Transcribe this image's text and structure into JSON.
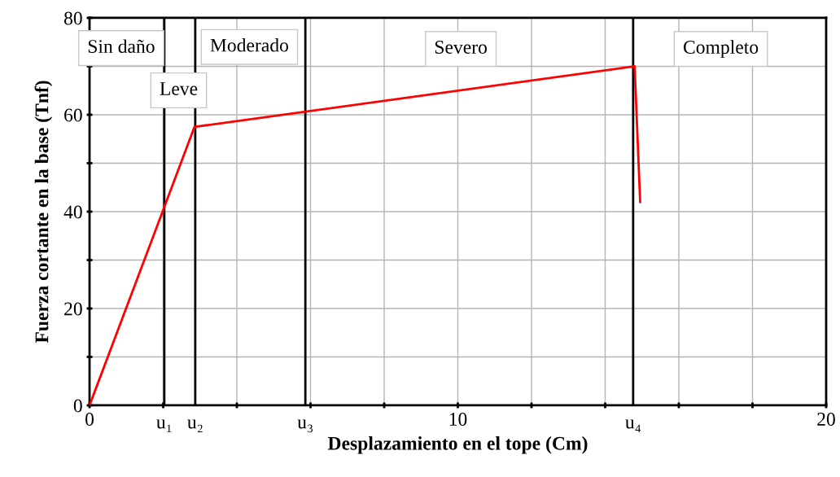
{
  "chart_data": {
    "type": "line",
    "xlabel": "Desplazamiento en el tope (Cm)",
    "ylabel": "Fuerza cortante en la base (Tnf)",
    "series": [
      {
        "color": "#ff0000",
        "x": [
          0,
          2.85,
          14.8,
          14.95
        ],
        "values": [
          0,
          57.5,
          70,
          42
        ]
      }
    ],
    "xlim": [
      0,
      20
    ],
    "ylim": [
      0,
      80
    ],
    "xticks": [
      0,
      {
        "value": 2,
        "label": null
      },
      {
        "value": 4,
        "label": null
      },
      {
        "value": 6,
        "label": null
      },
      {
        "value": 8,
        "label": null
      },
      10,
      {
        "value": 12,
        "label": null
      },
      {
        "value": 14,
        "label": null
      },
      {
        "value": 16,
        "label": null
      },
      {
        "value": 18,
        "label": null
      },
      20
    ],
    "yticks": [
      0,
      {
        "value": 10,
        "label": null
      },
      20,
      {
        "value": 30,
        "label": null
      },
      40,
      {
        "value": 50,
        "label": null
      },
      60,
      {
        "value": 70,
        "label": null
      },
      80
    ],
    "ref_lines": [
      {
        "axis": "x",
        "value": 2.03,
        "label": "u₁",
        "color": "#000000"
      },
      {
        "axis": "x",
        "value": 2.87,
        "label": "u₂",
        "color": "#000000"
      },
      {
        "axis": "x",
        "value": 5.86,
        "label": "u₃",
        "color": "#000000"
      },
      {
        "axis": "x",
        "value": 14.76,
        "label": "u₄",
        "color": "#000000"
      }
    ],
    "annotations": [
      "Sin daño",
      "Leve",
      "Moderado",
      "Severo",
      "Completo"
    ],
    "grid": true,
    "legend": false,
    "marker": "none",
    "line_style": "solid"
  }
}
